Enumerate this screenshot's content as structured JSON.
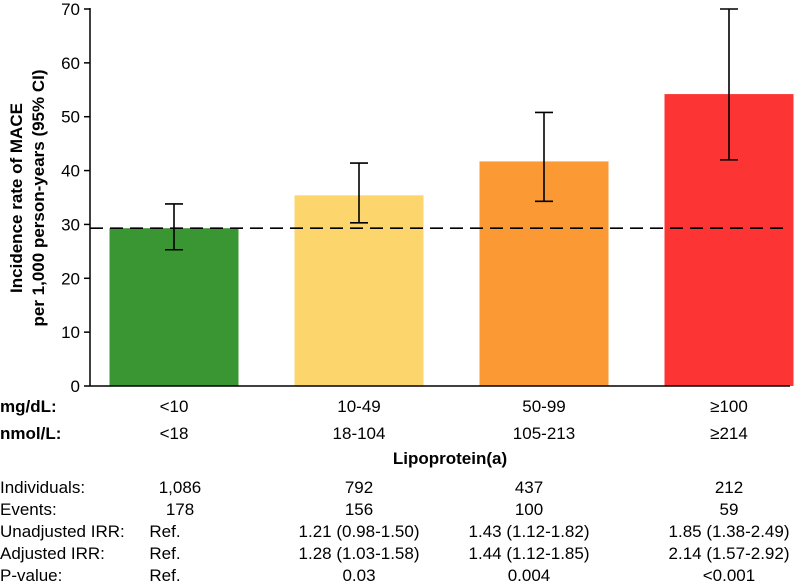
{
  "chart_data": {
    "type": "bar",
    "ylabel_line1": "Incidence rate of MACE",
    "ylabel_line2": "per 1,000 person-years (95% CI)",
    "xlabel": "Lipoprotein(a)",
    "ylim": [
      0,
      70
    ],
    "yticks": [
      0,
      10,
      20,
      30,
      40,
      50,
      60,
      70
    ],
    "reference_line": 29.3,
    "row_labels": {
      "mgdl": "mg/dL:",
      "nmoll": "nmol/L:"
    },
    "categories_mgdl": [
      "<10",
      "10-49",
      "50-99",
      "≥100"
    ],
    "categories_nmoll": [
      "<18",
      "18-104",
      "105-213",
      "≥214"
    ],
    "values": [
      29.3,
      35.4,
      41.7,
      54.2
    ],
    "ci_lower": [
      25.3,
      30.3,
      34.3,
      42.0
    ],
    "ci_upper": [
      33.8,
      41.4,
      50.8,
      70.0
    ],
    "colors": [
      "#3a9632",
      "#fcd66c",
      "#fb9a35",
      "#fc3434"
    ]
  },
  "table": {
    "rows": [
      {
        "label": "Individuals:",
        "cells": [
          "1,086",
          "792",
          "437",
          "212"
        ]
      },
      {
        "label": "Events:",
        "cells": [
          "178",
          "156",
          "100",
          "59"
        ]
      },
      {
        "label": "Unadjusted IRR:",
        "cells": [
          "Ref.",
          "1.21 (0.98-1.50)",
          "1.43 (1.12-1.82)",
          "1.85 (1.38-2.49)"
        ]
      },
      {
        "label": "Adjusted IRR:",
        "cells": [
          "Ref.",
          "1.28 (1.03-1.58)",
          "1.44 (1.12-1.85)",
          "2.14 (1.57-2.92)"
        ]
      },
      {
        "label": "P-value:",
        "cells": [
          "Ref.",
          "0.03",
          "0.004",
          "<0.001"
        ]
      }
    ]
  }
}
